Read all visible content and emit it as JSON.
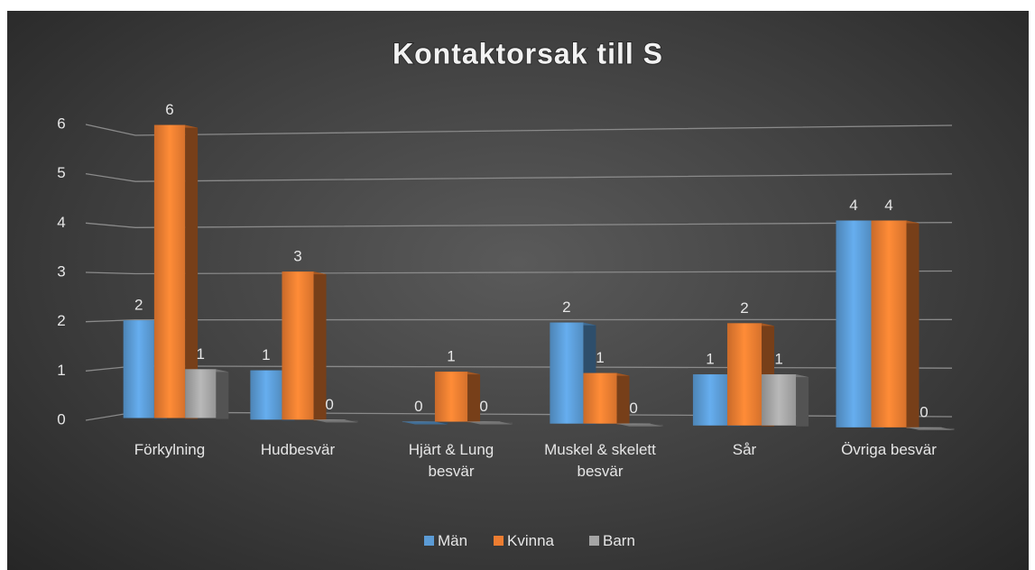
{
  "chart_data": {
    "type": "bar",
    "title": "Kontaktorsak till S",
    "categories": [
      "Förkylning",
      "Hudbesvär",
      "Hjärt & Lung besvär",
      "Muskel & skelett besvär",
      "Sår",
      "Övriga besvär"
    ],
    "series": [
      {
        "name": "Män",
        "color": "#5b9bd5",
        "values": [
          2,
          1,
          0,
          2,
          1,
          4
        ]
      },
      {
        "name": "Kvinna",
        "color": "#ed7d31",
        "values": [
          6,
          3,
          1,
          1,
          2,
          4
        ]
      },
      {
        "name": "Barn",
        "color": "#a5a5a5",
        "values": [
          1,
          0,
          0,
          0,
          1,
          0
        ]
      }
    ],
    "ylim": [
      0,
      6
    ],
    "yticks": [
      0,
      1,
      2,
      3,
      4,
      5,
      6
    ],
    "grid": true,
    "legend": "bottom"
  }
}
